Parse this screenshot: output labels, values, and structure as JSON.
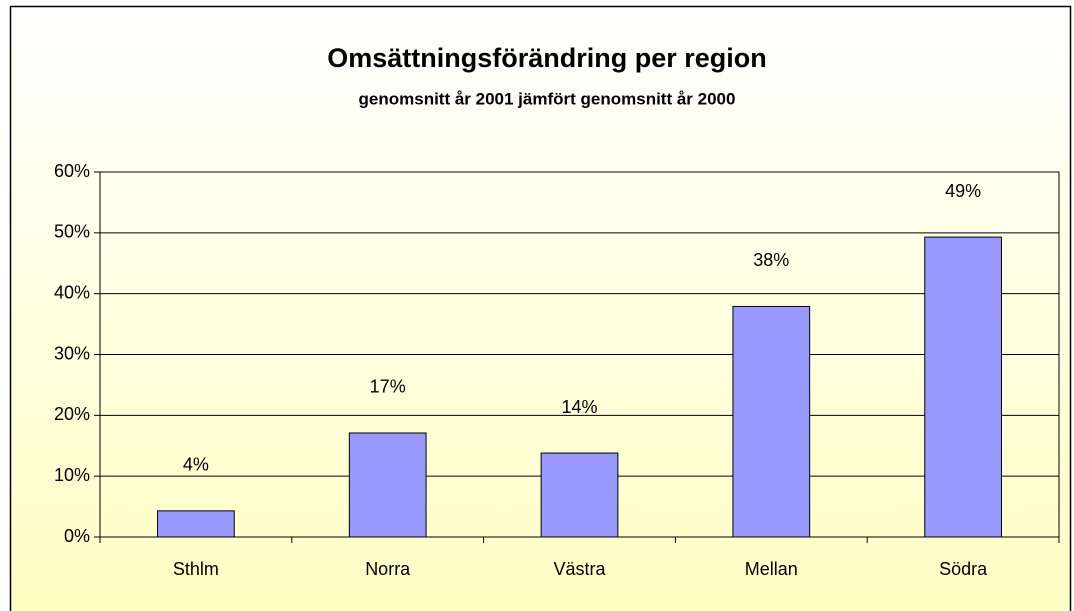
{
  "chart_data": {
    "type": "bar",
    "title": "Omsättningsförändring per region",
    "subtitle": "genomsnitt år 2001 jämfört genomsnitt år 2000",
    "categories": [
      "Sthlm",
      "Norra",
      "Västra",
      "Mellan",
      "Södra"
    ],
    "values": [
      4.3,
      17.1,
      13.8,
      37.9,
      49.3
    ],
    "value_labels": [
      "4%",
      "17%",
      "14%",
      "38%",
      "49%"
    ],
    "color": "#9999ff",
    "ylim": [
      0,
      60
    ],
    "yticks": [
      {
        "value": 0,
        "label": "0%"
      },
      {
        "value": 10,
        "label": "10%"
      },
      {
        "value": 20,
        "label": "20%"
      },
      {
        "value": 30,
        "label": "30%"
      },
      {
        "value": 40,
        "label": "40%"
      },
      {
        "value": 50,
        "label": "50%"
      },
      {
        "value": 60,
        "label": "60%"
      }
    ],
    "grid": true
  }
}
